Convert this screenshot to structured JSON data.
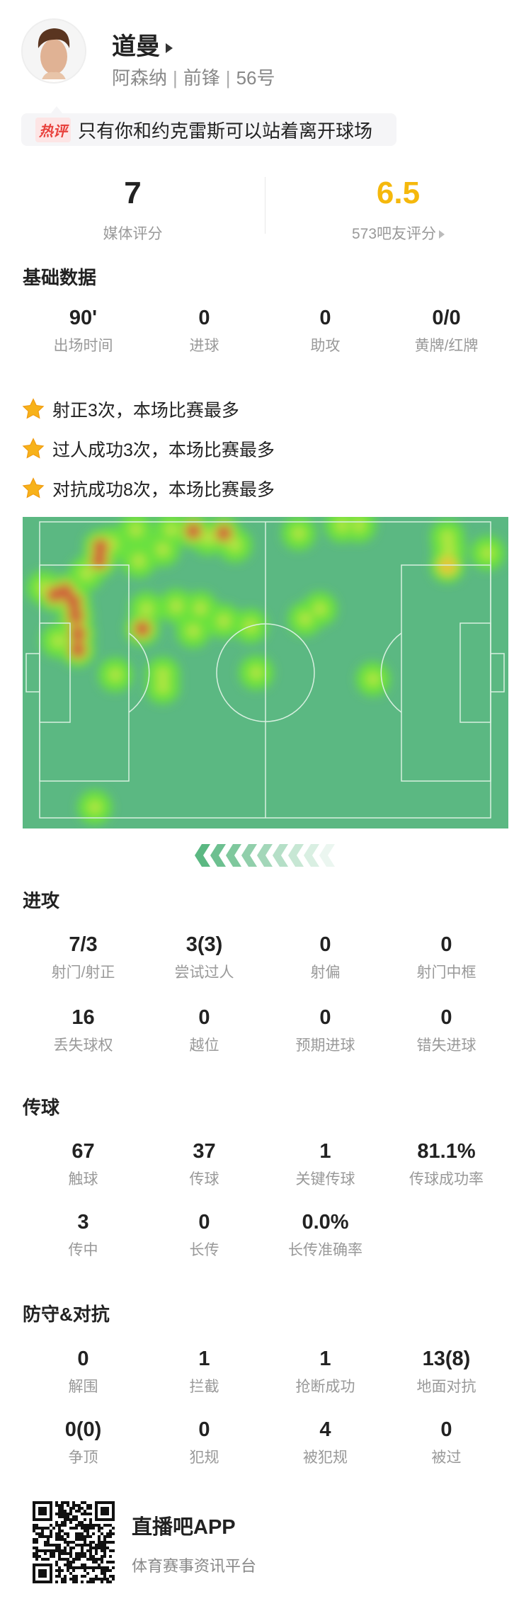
{
  "player": {
    "name": "道曼",
    "team": "阿森纳",
    "position": "前锋",
    "number": "56号"
  },
  "hot_comment": {
    "tag": "热评",
    "text": "只有你和约克雷斯可以站着离开球场"
  },
  "ratings": {
    "media": {
      "value": "7",
      "label": "媒体评分"
    },
    "fans": {
      "value": "6.5",
      "label": "573吧友评分",
      "color": "#f5b80c"
    }
  },
  "basic": {
    "title": "基础数据",
    "items": [
      {
        "value": "90'",
        "label": "出场时间"
      },
      {
        "value": "0",
        "label": "进球"
      },
      {
        "value": "0",
        "label": "助攻"
      },
      {
        "value": "0/0",
        "label": "黄牌/红牌"
      }
    ]
  },
  "highlights": [
    {
      "icon": "star-icon",
      "text": "射正3次，本场比赛最多"
    },
    {
      "icon": "star-icon",
      "text": "过人成功3次，本场比赛最多"
    },
    {
      "icon": "star-icon",
      "text": "对抗成功8次，本场比赛最多"
    }
  ],
  "colors": {
    "pitch": "#5bb882",
    "star": "#f7b21a",
    "hot_red": "#e8413c"
  },
  "attack": {
    "title": "进攻",
    "items": [
      {
        "value": "7/3",
        "label": "射门/射正"
      },
      {
        "value": "3(3)",
        "label": "尝试过人"
      },
      {
        "value": "0",
        "label": "射偏"
      },
      {
        "value": "0",
        "label": "射门中框"
      },
      {
        "value": "16",
        "label": "丢失球权"
      },
      {
        "value": "0",
        "label": "越位"
      },
      {
        "value": "0",
        "label": "预期进球"
      },
      {
        "value": "0",
        "label": "错失进球"
      }
    ]
  },
  "passing": {
    "title": "传球",
    "items": [
      {
        "value": "67",
        "label": "触球"
      },
      {
        "value": "37",
        "label": "传球"
      },
      {
        "value": "1",
        "label": "关键传球"
      },
      {
        "value": "81.1%",
        "label": "传球成功率"
      },
      {
        "value": "3",
        "label": "传中"
      },
      {
        "value": "0",
        "label": "长传"
      },
      {
        "value": "0.0%",
        "label": "长传准确率"
      }
    ]
  },
  "defense": {
    "title": "防守&对抗",
    "items": [
      {
        "value": "0",
        "label": "解围"
      },
      {
        "value": "1",
        "label": "拦截"
      },
      {
        "value": "1",
        "label": "抢断成功"
      },
      {
        "value": "13(8)",
        "label": "地面对抗"
      },
      {
        "value": "0(0)",
        "label": "争顶"
      },
      {
        "value": "0",
        "label": "犯规"
      },
      {
        "value": "4",
        "label": "被犯规"
      },
      {
        "value": "0",
        "label": "被过"
      }
    ]
  },
  "footer": {
    "app": "直播吧APP",
    "slogan": "体育赛事资讯平台"
  }
}
